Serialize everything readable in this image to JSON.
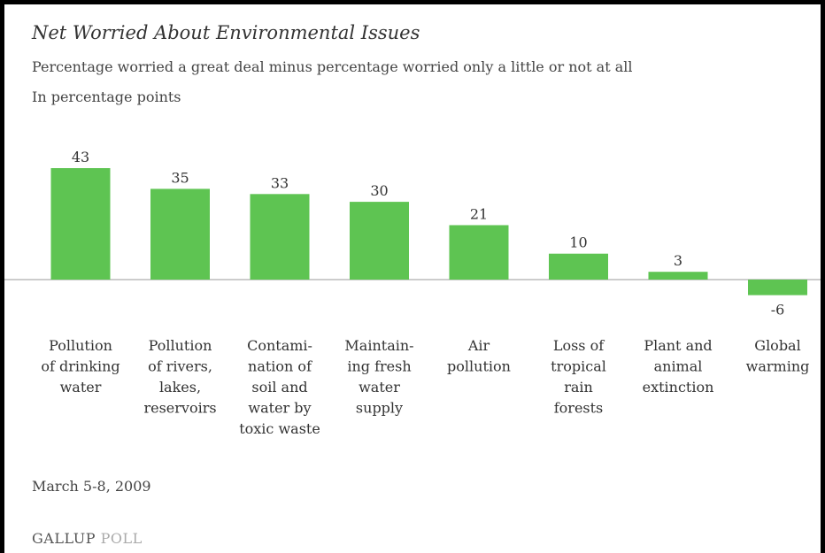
{
  "title": "Net Worried About Environmental Issues",
  "subtitle_line1": "Percentage worried a great deal minus percentage worried only a little or not at all",
  "subtitle_line2": "In percentage points",
  "footer_date": "March 5-8, 2009",
  "logo": {
    "part1": "GALLUP",
    "part2": "POLL"
  },
  "colors": {
    "bar": "#5ec452",
    "axis": "#999999",
    "text": "#333333"
  },
  "chart_data": {
    "type": "bar",
    "categories": [
      [
        "Pollution",
        "of drinking",
        "water"
      ],
      [
        "Pollution",
        "of rivers,",
        "lakes,",
        "reservoirs"
      ],
      [
        "Contami-",
        "nation of",
        "soil and",
        "water by",
        "toxic waste"
      ],
      [
        "Maintain-",
        "ing fresh",
        "water",
        "supply"
      ],
      [
        "Air",
        "pollution"
      ],
      [
        "Loss of",
        "tropical",
        "rain",
        "forests"
      ],
      [
        "Plant and",
        "animal",
        "extinction"
      ],
      [
        "Global",
        "warming"
      ]
    ],
    "values": [
      43,
      35,
      33,
      30,
      21,
      10,
      3,
      -6
    ],
    "value_labels": [
      "43",
      "35",
      "33",
      "30",
      "21",
      "10",
      "3",
      "-6"
    ],
    "title": "Net Worried About Environmental Issues",
    "ylabel": "",
    "xlabel": "",
    "grid": false,
    "zero_line": true
  }
}
